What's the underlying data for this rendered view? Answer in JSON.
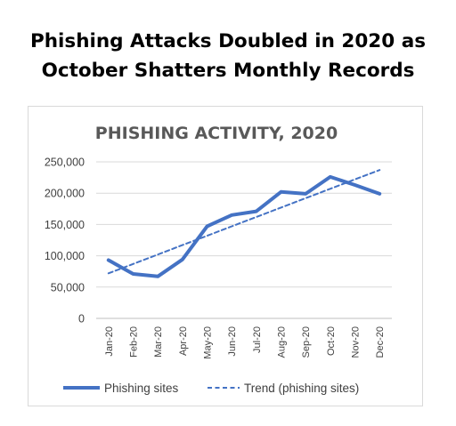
{
  "headline": {
    "line1": "Phishing Attacks Doubled in 2020 as",
    "line2": "October Shatters Monthly Records"
  },
  "chart_data": {
    "type": "line",
    "title": "PHISHING ACTIVITY, 2020",
    "xlabel": "",
    "ylabel": "",
    "categories": [
      "Jan-20",
      "Feb-20",
      "Mar-20",
      "Apr-20",
      "May-20",
      "Jun-20",
      "Jul-20",
      "Aug-20",
      "Sep-20",
      "Oct-20",
      "Nov-20",
      "Dec-20"
    ],
    "yticks": [
      "0",
      "50,000",
      "100,000",
      "150,000",
      "200,000",
      "250,000"
    ],
    "ylim": [
      0,
      250000
    ],
    "grid": true,
    "legend_position": "bottom",
    "series": [
      {
        "name": "Phishing sites",
        "style": "solid",
        "color": "#4472c4",
        "values": [
          93000,
          71000,
          67000,
          94000,
          147000,
          165000,
          171000,
          202000,
          199000,
          226000,
          213000,
          199000
        ]
      },
      {
        "name": "Trend (phishing sites)",
        "style": "dashed",
        "color": "#4472c4",
        "values": [
          72000,
          87000,
          102000,
          117000,
          132000,
          147000,
          162000,
          177000,
          192000,
          207000,
          222000,
          237000
        ]
      }
    ]
  }
}
